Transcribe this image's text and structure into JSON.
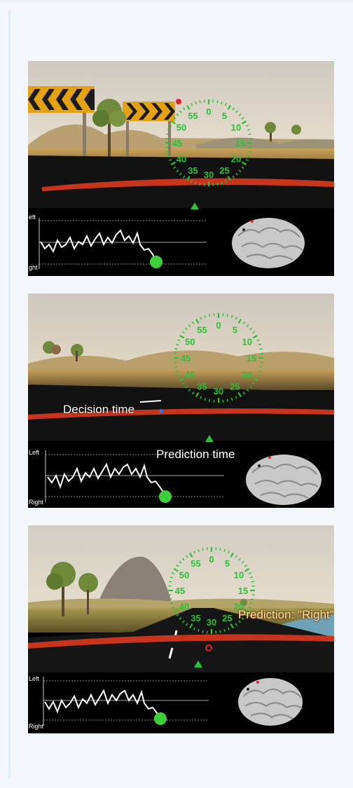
{
  "panels": [
    {
      "id": "panel-1",
      "eeg_left_label": "eft",
      "eeg_right_label": "ght",
      "dial_numbers": [
        "0",
        "5",
        "10",
        "15",
        "20",
        "25",
        "30",
        "35",
        "40",
        "45",
        "50",
        "55"
      ]
    },
    {
      "id": "panel-2",
      "eeg_left_label": "Left",
      "eeg_right_label": "Right",
      "decision_label": "Decision time",
      "prediction_label": "Prediction time",
      "dial_numbers": [
        "0",
        "5",
        "10",
        "15",
        "20",
        "25",
        "30",
        "35",
        "40",
        "45",
        "50",
        "55"
      ]
    },
    {
      "id": "panel-3",
      "eeg_left_label": "Left",
      "eeg_right_label": "Right",
      "prediction_result": "Prediction: \"Right\"",
      "dial_numbers": [
        "0",
        "5",
        "10",
        "15",
        "20",
        "25",
        "30",
        "35",
        "40",
        "45",
        "50",
        "55"
      ]
    }
  ],
  "colors": {
    "dial_green": "#2fbf3a",
    "marker_red": "#e0202a",
    "eeg_dot": "#3fcf3a",
    "road_red": "#c8351e"
  }
}
